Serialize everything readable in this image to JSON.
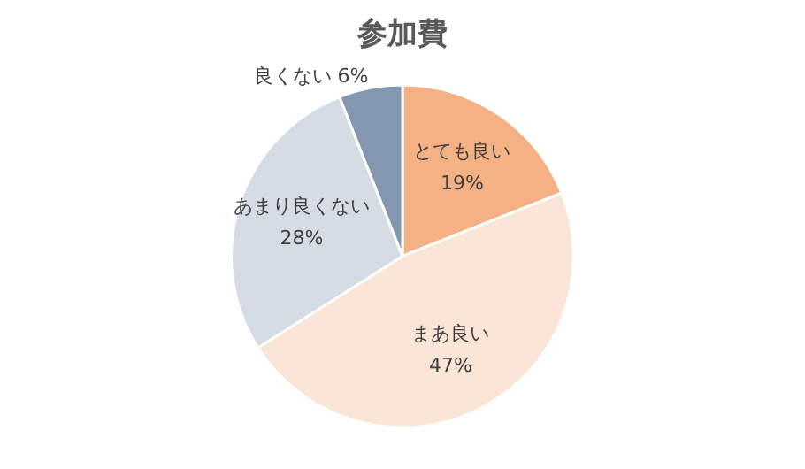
{
  "chart_data": {
    "type": "pie",
    "title": "参加費",
    "categories": [
      "とても良い",
      "まあ良い",
      "あまり良くない",
      "良くない"
    ],
    "values": [
      19,
      47,
      28,
      6
    ],
    "colors": [
      "#f4b183",
      "#fbe5d6",
      "#d6dce5",
      "#8497b0"
    ],
    "value_labels": [
      "19%",
      "47%",
      "28%",
      "6%"
    ],
    "legend": false
  }
}
